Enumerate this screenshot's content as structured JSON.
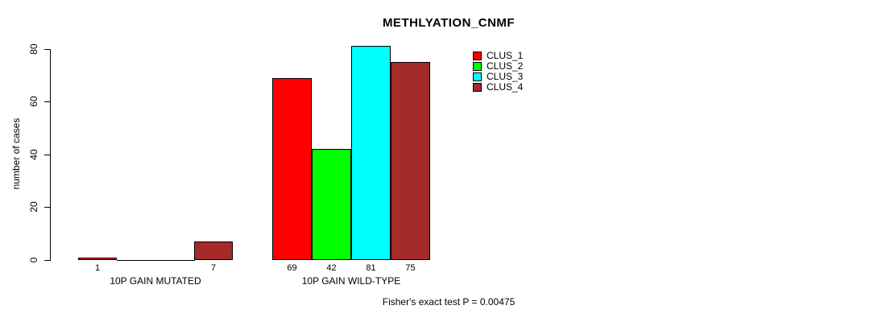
{
  "title": "METHLYATION_CNMF",
  "ylabel": "number of cases",
  "footnote": "Fisher's exact test P = 0.00475",
  "chart_data": {
    "type": "bar",
    "grouped": true,
    "title": "METHLYATION_CNMF",
    "xlabel": "",
    "ylabel": "number of cases",
    "categories": [
      "10P GAIN MUTATED",
      "10P GAIN WILD-TYPE"
    ],
    "series": [
      {
        "name": "CLUS_1",
        "color": "#FF0000",
        "values": [
          1,
          69
        ]
      },
      {
        "name": "CLUS_2",
        "color": "#00FF00",
        "values": [
          0,
          42
        ]
      },
      {
        "name": "CLUS_3",
        "color": "#00FFFF",
        "values": [
          0,
          81
        ]
      },
      {
        "name": "CLUS_4",
        "color": "#A52A2A",
        "values": [
          7,
          75
        ]
      }
    ],
    "bar_value_labels_shown": true,
    "zero_values_unlabeled": true,
    "ylim": [
      0,
      80
    ],
    "yticks": [
      0,
      20,
      40,
      60,
      80
    ],
    "grid": false,
    "legend_position": "top-right",
    "axis_color": "#000000",
    "bar_border_color": "#000000",
    "footnote": "Fisher's exact test P = 0.00475"
  }
}
